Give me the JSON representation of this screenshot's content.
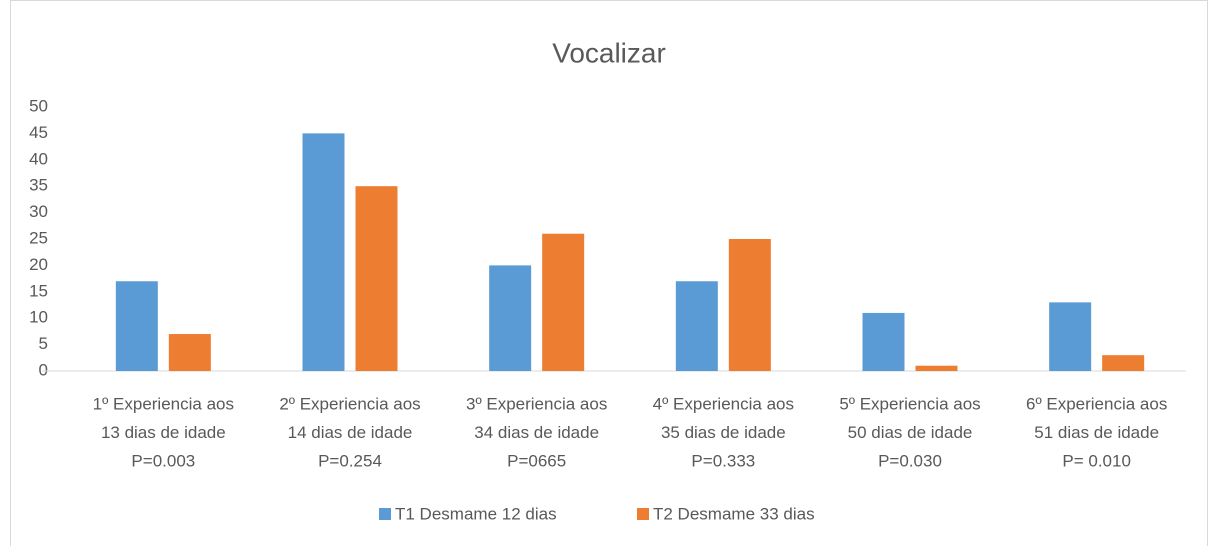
{
  "chart_data": {
    "type": "bar",
    "title": "Vocalizar",
    "categories": [
      [
        "1º Experiencia aos",
        "13 dias de idade",
        "P=0.003"
      ],
      [
        "2º Experiencia aos",
        "14 dias de idade",
        "P=0.254"
      ],
      [
        "3º Experiencia aos",
        "34 dias de idade",
        "P=0665"
      ],
      [
        "4º Experiencia aos",
        "35 dias de idade",
        "P=0.333"
      ],
      [
        "5º Experiencia aos",
        "50 dias de idade",
        "P=0.030"
      ],
      [
        "6º Experiencia aos",
        "51 dias de idade",
        "P= 0.010"
      ]
    ],
    "series": [
      {
        "name": "T1 Desmame 12 dias",
        "color": "#5b9bd5",
        "values": [
          17,
          45,
          20,
          17,
          11,
          13
        ]
      },
      {
        "name": "T2 Desmame 33 dias",
        "color": "#ed7d31",
        "values": [
          7,
          35,
          26,
          25,
          1,
          3
        ]
      }
    ],
    "ylim": [
      0,
      50
    ],
    "yticks": [
      0,
      5,
      10,
      15,
      20,
      25,
      30,
      35,
      40,
      45,
      50
    ],
    "grid": false,
    "legend": "bottom"
  }
}
